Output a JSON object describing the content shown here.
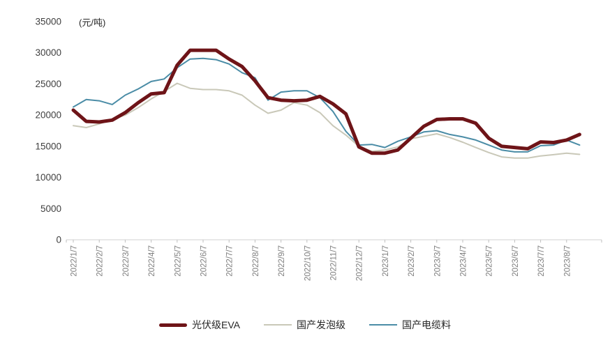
{
  "unit_label": "(元/吨)",
  "colors": {
    "series_pv_eva": "#6E1418",
    "series_foaming": "#C9C8B8",
    "series_cable": "#4A8CA6",
    "axis_line": "#D9D9D9",
    "tick_mark": "#BFBFBF",
    "y_label_text": "#404040",
    "x_label_text": "#808080",
    "legend_text": "#262626",
    "background": "#FFFFFF"
  },
  "chart_data": {
    "type": "line",
    "title": "",
    "ylabel": "(元/吨)",
    "xlabel": "",
    "ylim": [
      0,
      35000
    ],
    "grid": false,
    "legend_position": "bottom",
    "y_tick_labels": [
      "0",
      "5000",
      "10000",
      "15000",
      "20000",
      "25000",
      "30000",
      "35000"
    ],
    "y_ticks": [
      0,
      5000,
      10000,
      15000,
      20000,
      25000,
      30000,
      35000
    ],
    "x_tick_labels": [
      "2022/1/7",
      "2022/2/7",
      "2022/3/7",
      "2022/4/7",
      "2022/5/7",
      "2022/6/7",
      "2022/7/7",
      "2022/8/7",
      "2022/9/7",
      "2022/10/7",
      "2022/11/7",
      "2022/12/7",
      "2023/1/7",
      "2023/2/7",
      "2023/3/7",
      "2023/4/7",
      "2023/5/7",
      "2023/6/7",
      "2023/7/7",
      "2023/8/7"
    ],
    "points_per_tick": 2,
    "sampling_note": "values estimated at half-month intervals from 2022/1/7 to 2023/8/21",
    "series": [
      {
        "name": "国产发泡级",
        "color": "#C9C8B8",
        "stroke_width": 2,
        "values": [
          18300,
          18000,
          18600,
          19300,
          20000,
          21200,
          22600,
          23800,
          25100,
          24300,
          24100,
          24100,
          23900,
          23200,
          21600,
          20300,
          20800,
          22000,
          21600,
          20400,
          18300,
          16800,
          15000,
          14200,
          14400,
          14900,
          16200,
          16600,
          17000,
          16400,
          15650,
          14800,
          14000,
          13300,
          13100,
          13100,
          13450,
          13650,
          13900,
          13700
        ]
      },
      {
        "name": "国产电缆料",
        "color": "#4A8CA6",
        "stroke_width": 2,
        "values": [
          21300,
          22500,
          22300,
          21700,
          23200,
          24200,
          25400,
          25800,
          27600,
          29000,
          29100,
          28900,
          28200,
          26800,
          26000,
          22400,
          23700,
          23900,
          23900,
          22800,
          20600,
          17400,
          15200,
          15300,
          14800,
          15800,
          16500,
          17300,
          17500,
          16900,
          16500,
          16000,
          15200,
          14400,
          14100,
          14100,
          15100,
          15200,
          16000,
          15200
        ]
      },
      {
        "name": "光伏级EVA",
        "color": "#6E1418",
        "stroke_width": 5,
        "values": [
          20800,
          19000,
          18900,
          19200,
          20400,
          22000,
          23400,
          23600,
          28000,
          30400,
          30400,
          30400,
          29000,
          27800,
          25500,
          22800,
          22400,
          22300,
          22400,
          23000,
          21800,
          20200,
          14900,
          13900,
          13900,
          14400,
          16300,
          18200,
          19300,
          19400,
          19400,
          18700,
          16300,
          15000,
          14800,
          14600,
          15700,
          15600,
          16000,
          16900
        ]
      }
    ]
  },
  "legend": {
    "items": [
      {
        "label": "光伏级EVA",
        "color": "#6E1418",
        "thick": true
      },
      {
        "label": "国产发泡级",
        "color": "#C9C8B8",
        "thick": false
      },
      {
        "label": "国产电缆料",
        "color": "#4A8CA6",
        "thick": false
      }
    ]
  }
}
